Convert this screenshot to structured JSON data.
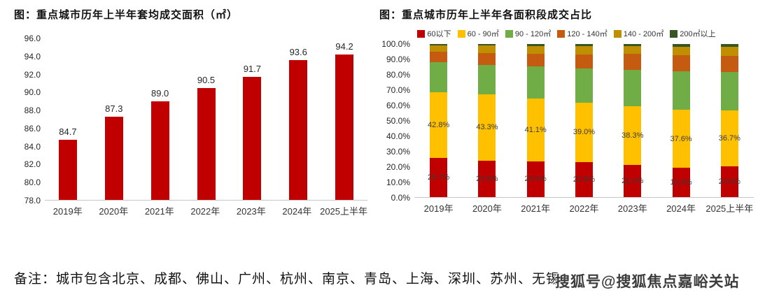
{
  "footnote": "备注：城市包含北京、成都、佛山、广州、杭州、南京、青岛、上海、深圳、苏州、无锡",
  "watermark": "搜狐号@搜狐焦点嘉峪关站",
  "colors": {
    "primary_red": "#c00000",
    "axis_line": "#c6c6c6",
    "label_text": "#262626"
  },
  "chart_data": [
    {
      "type": "bar",
      "title": "图：重点城市历年上半年套均成交面积（㎡）",
      "categories": [
        "2019年",
        "2020年",
        "2021年",
        "2022年",
        "2023年",
        "2024年",
        "2025上半年"
      ],
      "values": [
        84.7,
        87.3,
        89.0,
        90.5,
        91.7,
        93.6,
        94.2
      ],
      "data_labels": [
        "84.7",
        "87.3",
        "89.0",
        "90.5",
        "91.7",
        "93.6",
        "94.2"
      ],
      "ylim": [
        78.0,
        96.0
      ],
      "ytick_step": 2.0,
      "ytick_labels": [
        "96.0",
        "94.0",
        "92.0",
        "90.0",
        "88.0",
        "86.0",
        "84.0",
        "82.0",
        "80.0",
        "78.0"
      ],
      "bar_color": "#c00000",
      "grid": false,
      "legend": "none",
      "xlabel": "",
      "ylabel": ""
    },
    {
      "type": "stacked-bar",
      "title": "图：重点城市历年上半年各面积段成交占比",
      "categories": [
        "2019年",
        "2020年",
        "2021年",
        "2022年",
        "2023年",
        "2024年",
        "2025上半年"
      ],
      "series": [
        {
          "name": "60以下",
          "color": "#c00000",
          "values": [
            25.7,
            23.8,
            23.4,
            22.8,
            21.0,
            19.3,
            20.0
          ],
          "labels": [
            "25.7%",
            "23.8%",
            "23.4%",
            "22.8%",
            "21.0%",
            "19.3%",
            "20.0%"
          ]
        },
        {
          "name": "60 - 90㎡",
          "color": "#ffc000",
          "values": [
            42.8,
            43.3,
            41.1,
            39.0,
            38.3,
            37.6,
            36.7
          ],
          "labels": [
            "42.8%",
            "43.3%",
            "41.1%",
            "39.0%",
            "38.3%",
            "37.6%",
            "36.7%"
          ]
        },
        {
          "name": "90 - 120㎡",
          "color": "#70ad47",
          "values": [
            19.8,
            19.3,
            20.8,
            22.3,
            24.0,
            25.2,
            25.1
          ],
          "labels": null
        },
        {
          "name": "120 - 140㎡",
          "color": "#c55a11",
          "values": [
            6.7,
            7.8,
            8.2,
            9.1,
            10.2,
            10.6,
            10.6
          ],
          "labels": null
        },
        {
          "name": "140 - 200㎡",
          "color": "#bf8f00",
          "values": [
            4.2,
            4.8,
            5.2,
            5.5,
            5.1,
            5.4,
            6.0
          ],
          "labels": null
        },
        {
          "name": "200㎡以上",
          "color": "#375623",
          "values": [
            0.8,
            1.0,
            1.3,
            1.3,
            1.4,
            1.9,
            1.6
          ],
          "labels": null
        }
      ],
      "ylim": [
        0,
        100
      ],
      "ytick_step": 10,
      "ytick_labels": [
        "100.0%",
        "90.0%",
        "80.0%",
        "70.0%",
        "60.0%",
        "50.0%",
        "40.0%",
        "30.0%",
        "20.0%",
        "10.0%",
        "0.0%"
      ],
      "grid": false,
      "legend_position": "top",
      "note": "only_first_two_series_have_data_labels"
    }
  ]
}
